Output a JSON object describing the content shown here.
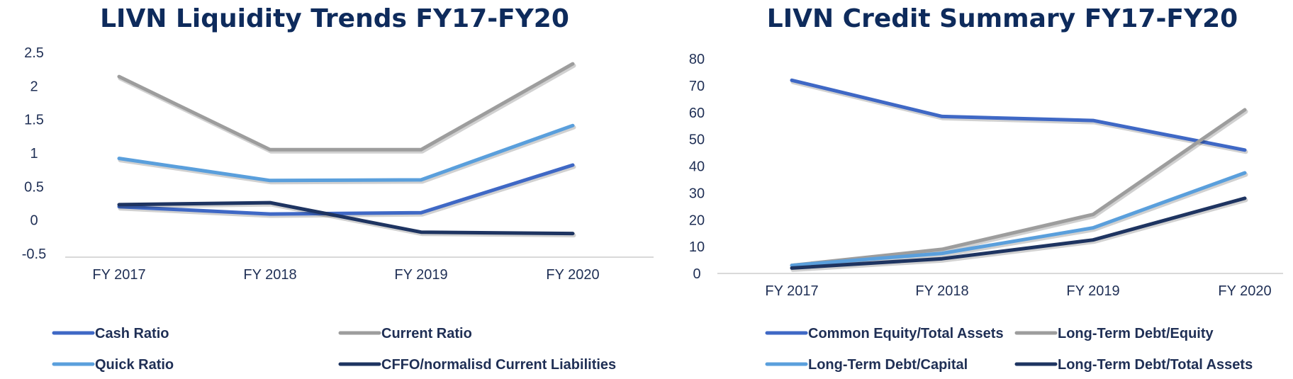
{
  "chart_data": [
    {
      "type": "line",
      "title": "LIVN Liquidity Trends FY17-FY20",
      "categories": [
        "FY 2017",
        "FY 2018",
        "FY 2019",
        "FY 2020"
      ],
      "ylim": [
        -0.5,
        2.5
      ],
      "yticks": [
        -0.5,
        0,
        0.5,
        1,
        1.5,
        2,
        2.5
      ],
      "ytick_labels": [
        "-0.5",
        "0",
        "0.5",
        "1",
        "1.5",
        "2",
        "2.5"
      ],
      "legend_position": "bottom",
      "grid": false,
      "series": [
        {
          "name": "Cash Ratio",
          "color": "#3f68c5",
          "values": [
            0.2,
            0.09,
            0.11,
            0.82
          ]
        },
        {
          "name": "Current Ratio",
          "color": "#9d9d9d",
          "values": [
            2.14,
            1.05,
            1.05,
            2.33
          ]
        },
        {
          "name": "Quick Ratio",
          "color": "#5a9fdc",
          "values": [
            0.92,
            0.59,
            0.6,
            1.41
          ]
        },
        {
          "name": "CFFO/normalisd Current Liabilities",
          "color": "#1e3461",
          "values": [
            0.23,
            0.26,
            -0.18,
            -0.2
          ]
        }
      ]
    },
    {
      "type": "line",
      "title": "LIVN Credit Summary FY17-FY20",
      "categories": [
        "FY 2017",
        "FY 2018",
        "FY 2019",
        "FY 2020"
      ],
      "ylim": [
        0,
        80
      ],
      "yticks": [
        0,
        10,
        20,
        30,
        40,
        50,
        60,
        70,
        80
      ],
      "ytick_labels": [
        "0",
        "10",
        "20",
        "30",
        "40",
        "50",
        "60",
        "70",
        "80"
      ],
      "legend_position": "bottom",
      "grid": false,
      "series": [
        {
          "name": "Common Equity/Total Assets",
          "color": "#3f68c5",
          "values": [
            72,
            58.5,
            57,
            46
          ]
        },
        {
          "name": "Long-Term Debt/Equity",
          "color": "#9d9d9d",
          "values": [
            3,
            9,
            22,
            61
          ]
        },
        {
          "name": "Long-Term Debt/Capital",
          "color": "#5a9fdc",
          "values": [
            3,
            7.5,
            17,
            37.5
          ]
        },
        {
          "name": "Long-Term Debt/Total Assets",
          "color": "#1e3461",
          "values": [
            2,
            5.5,
            12.5,
            28
          ]
        }
      ]
    }
  ]
}
